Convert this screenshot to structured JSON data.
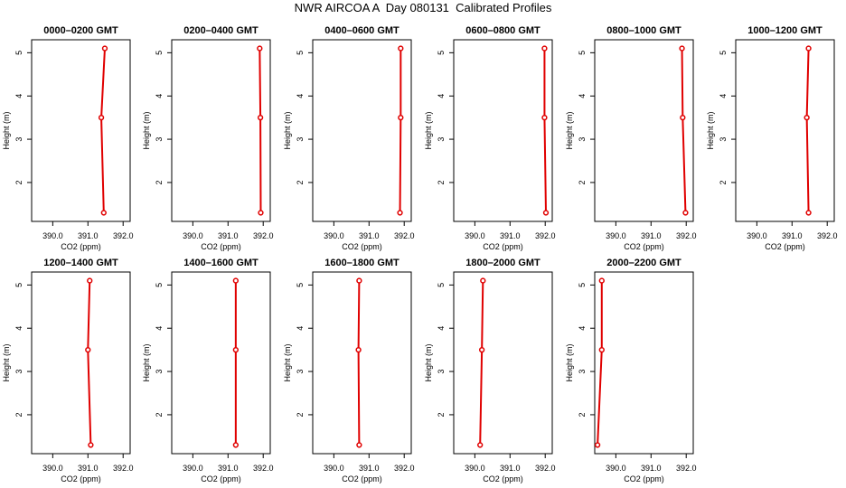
{
  "figure_title": "NWR AIRCOA A  Day 080131  Calibrated Profiles",
  "chart_data": [
    {
      "type": "line",
      "title": "0000–0200 GMT",
      "xlabel": "CO2 (ppm)",
      "ylabel": "Height (m)",
      "xlim": [
        389.4,
        392.2
      ],
      "ylim": [
        1.1,
        5.3
      ],
      "xticks": [
        "390.0",
        "391.0",
        "392.0"
      ],
      "yticks": [
        "2",
        "3",
        "4",
        "5"
      ],
      "series": [
        {
          "color": "#e00000",
          "points": [
            {
              "x": 391.48,
              "y": 5.1
            },
            {
              "x": 391.38,
              "y": 3.5
            },
            {
              "x": 391.45,
              "y": 1.3
            }
          ]
        }
      ]
    },
    {
      "type": "line",
      "title": "0200–0400 GMT",
      "xlabel": "CO2 (ppm)",
      "ylabel": "Height (m)",
      "xlim": [
        389.4,
        392.2
      ],
      "ylim": [
        1.1,
        5.3
      ],
      "xticks": [
        "390.0",
        "391.0",
        "392.0"
      ],
      "yticks": [
        "2",
        "3",
        "4",
        "5"
      ],
      "series": [
        {
          "color": "#e00000",
          "points": [
            {
              "x": 391.9,
              "y": 5.1
            },
            {
              "x": 391.92,
              "y": 3.5
            },
            {
              "x": 391.93,
              "y": 1.3
            }
          ]
        }
      ]
    },
    {
      "type": "line",
      "title": "0400–0600 GMT",
      "xlabel": "CO2 (ppm)",
      "ylabel": "Height (m)",
      "xlim": [
        389.4,
        392.2
      ],
      "ylim": [
        1.1,
        5.3
      ],
      "xticks": [
        "390.0",
        "391.0",
        "392.0"
      ],
      "yticks": [
        "2",
        "3",
        "4",
        "5"
      ],
      "series": [
        {
          "color": "#e00000",
          "points": [
            {
              "x": 391.9,
              "y": 5.1
            },
            {
              "x": 391.9,
              "y": 3.5
            },
            {
              "x": 391.88,
              "y": 1.3
            }
          ]
        }
      ]
    },
    {
      "type": "line",
      "title": "0600–0800 GMT",
      "xlabel": "CO2 (ppm)",
      "ylabel": "Height (m)",
      "xlim": [
        389.4,
        392.2
      ],
      "ylim": [
        1.1,
        5.3
      ],
      "xticks": [
        "390.0",
        "391.0",
        "392.0"
      ],
      "yticks": [
        "2",
        "3",
        "4",
        "5"
      ],
      "series": [
        {
          "color": "#e00000",
          "points": [
            {
              "x": 391.98,
              "y": 5.1
            },
            {
              "x": 391.98,
              "y": 3.5
            },
            {
              "x": 392.02,
              "y": 1.3
            }
          ]
        }
      ]
    },
    {
      "type": "line",
      "title": "0800–1000 GMT",
      "xlabel": "CO2 (ppm)",
      "ylabel": "Height (m)",
      "xlim": [
        389.4,
        392.2
      ],
      "ylim": [
        1.1,
        5.3
      ],
      "xticks": [
        "390.0",
        "391.0",
        "392.0"
      ],
      "yticks": [
        "2",
        "3",
        "4",
        "5"
      ],
      "series": [
        {
          "color": "#e00000",
          "points": [
            {
              "x": 391.88,
              "y": 5.1
            },
            {
              "x": 391.9,
              "y": 3.5
            },
            {
              "x": 391.98,
              "y": 1.3
            }
          ]
        }
      ]
    },
    {
      "type": "line",
      "title": "1000–1200 GMT",
      "xlabel": "CO2 (ppm)",
      "ylabel": "Height (m)",
      "xlim": [
        389.4,
        392.2
      ],
      "ylim": [
        1.1,
        5.3
      ],
      "xticks": [
        "390.0",
        "391.0",
        "392.0"
      ],
      "yticks": [
        "2",
        "3",
        "4",
        "5"
      ],
      "series": [
        {
          "color": "#e00000",
          "points": [
            {
              "x": 391.47,
              "y": 5.1
            },
            {
              "x": 391.42,
              "y": 3.5
            },
            {
              "x": 391.47,
              "y": 1.3
            }
          ]
        }
      ]
    },
    {
      "type": "line",
      "title": "1200–1400 GMT",
      "xlabel": "CO2 (ppm)",
      "ylabel": "Height (m)",
      "xlim": [
        389.4,
        392.2
      ],
      "ylim": [
        1.1,
        5.3
      ],
      "xticks": [
        "390.0",
        "391.0",
        "392.0"
      ],
      "yticks": [
        "2",
        "3",
        "4",
        "5"
      ],
      "series": [
        {
          "color": "#e00000",
          "points": [
            {
              "x": 391.05,
              "y": 5.1
            },
            {
              "x": 391.0,
              "y": 3.5
            },
            {
              "x": 391.08,
              "y": 1.3
            }
          ]
        }
      ]
    },
    {
      "type": "line",
      "title": "1400–1600 GMT",
      "xlabel": "CO2 (ppm)",
      "ylabel": "Height (m)",
      "xlim": [
        389.4,
        392.2
      ],
      "ylim": [
        1.1,
        5.3
      ],
      "xticks": [
        "390.0",
        "391.0",
        "392.0"
      ],
      "yticks": [
        "2",
        "3",
        "4",
        "5"
      ],
      "series": [
        {
          "color": "#e00000",
          "points": [
            {
              "x": 391.22,
              "y": 5.1
            },
            {
              "x": 391.22,
              "y": 3.5
            },
            {
              "x": 391.22,
              "y": 1.3
            }
          ]
        }
      ]
    },
    {
      "type": "line",
      "title": "1600–1800 GMT",
      "xlabel": "CO2 (ppm)",
      "ylabel": "Height (m)",
      "xlim": [
        389.4,
        392.2
      ],
      "ylim": [
        1.1,
        5.3
      ],
      "xticks": [
        "390.0",
        "391.0",
        "392.0"
      ],
      "yticks": [
        "2",
        "3",
        "4",
        "5"
      ],
      "series": [
        {
          "color": "#e00000",
          "points": [
            {
              "x": 390.72,
              "y": 5.1
            },
            {
              "x": 390.7,
              "y": 3.5
            },
            {
              "x": 390.72,
              "y": 1.3
            }
          ]
        }
      ]
    },
    {
      "type": "line",
      "title": "1800–2000 GMT",
      "xlabel": "CO2 (ppm)",
      "ylabel": "Height (m)",
      "xlim": [
        389.4,
        392.2
      ],
      "ylim": [
        1.1,
        5.3
      ],
      "xticks": [
        "390.0",
        "391.0",
        "392.0"
      ],
      "yticks": [
        "2",
        "3",
        "4",
        "5"
      ],
      "series": [
        {
          "color": "#e00000",
          "points": [
            {
              "x": 390.23,
              "y": 5.1
            },
            {
              "x": 390.2,
              "y": 3.5
            },
            {
              "x": 390.15,
              "y": 1.3
            }
          ]
        }
      ]
    },
    {
      "type": "line",
      "title": "2000–2200 GMT",
      "xlabel": "CO2 (ppm)",
      "ylabel": "Height (m)",
      "xlim": [
        389.4,
        392.2
      ],
      "ylim": [
        1.1,
        5.3
      ],
      "xticks": [
        "390.0",
        "391.0",
        "392.0"
      ],
      "yticks": [
        "2",
        "3",
        "4",
        "5"
      ],
      "series": [
        {
          "color": "#e00000",
          "points": [
            {
              "x": 389.6,
              "y": 5.1
            },
            {
              "x": 389.6,
              "y": 3.5
            },
            {
              "x": 389.48,
              "y": 1.3
            }
          ]
        }
      ]
    }
  ]
}
